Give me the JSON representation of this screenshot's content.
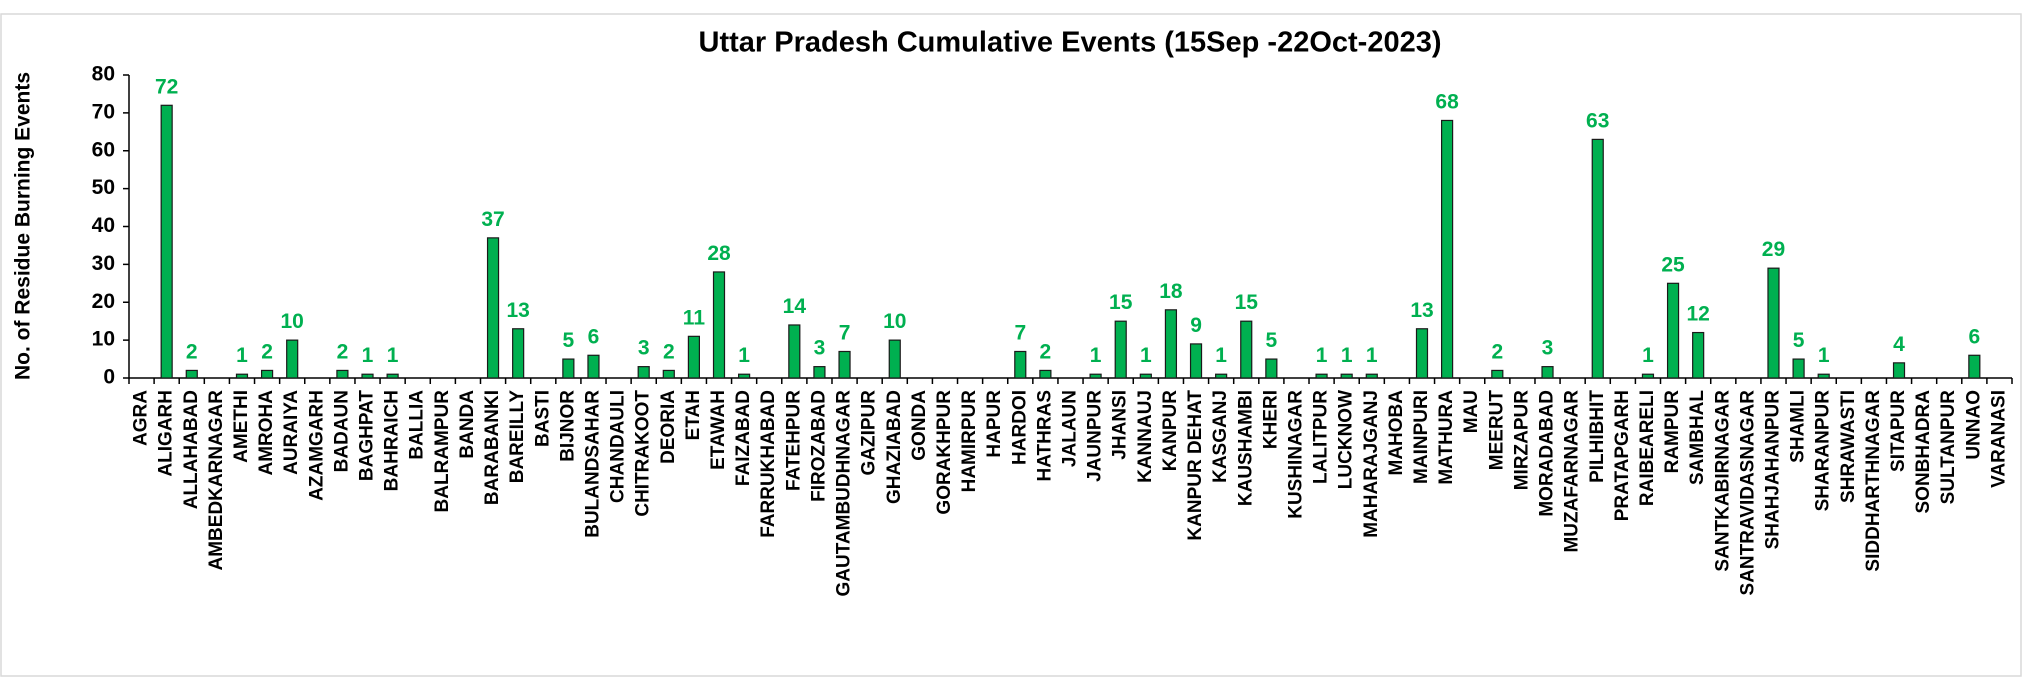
{
  "chart_data": {
    "type": "bar",
    "title": "Uttar Pradesh Cumulative Events (15Sep -22Oct-2023)",
    "y_label": "No. of Residue Burning Events",
    "color": "#00b050",
    "categories": [
      "AGRA",
      "ALIGARH",
      "ALLAHABAD",
      "AMBEDKARNAGAR",
      "AMETHI",
      "AMROHA",
      "AURAIYA",
      "AZAMGARH",
      "BADAUN",
      "BAGHPAT",
      "BAHRAICH",
      "BALLIA",
      "BALRAMPUR",
      "BANDA",
      "BARABANKI",
      "BAREILLY",
      "BASTI",
      "BIJNOR",
      "BULANDSAHAR",
      "CHANDAULI",
      "CHITRAKOOT",
      "DEORIA",
      "ETAH",
      "ETAWAH",
      "FAIZABAD",
      "FARRUKHABAD",
      "FATEHPUR",
      "FIROZABAD",
      "GAUTAMBUDHNAGAR",
      "GAZIPUR",
      "GHAZIABAD",
      "GONDA",
      "GORAKHPUR",
      "HAMIRPUR",
      "HAPUR",
      "HARDOI",
      "HATHRAS",
      "JALAUN",
      "JAUNPUR",
      "JHANSI",
      "KANNAUJ",
      "KANPUR",
      "KANPUR DEHAT",
      "KASGANJ",
      "KAUSHAMBI",
      "KHERI",
      "KUSHINAGAR",
      "LALITPUR",
      "LUCKNOW",
      "MAHARAJGANJ",
      "MAHOBA",
      "MAINPURI",
      "MATHURA",
      "MAU",
      "MEERUT",
      "MIRZAPUR",
      "MORADABAD",
      "MUZAFARNAGAR",
      "PILHIBHIT",
      "PRATAPGARH",
      "RAIBEARELI",
      "RAMPUR",
      "SAMBHAL",
      "SANTKABIRNAGAR",
      "SANTRAVIDASNAGAR",
      "SHAHJAHANPUR",
      "SHAMLI",
      "SHARANPUR",
      "SHRAWASTI",
      "SIDDHARTHNAGAR",
      "SITAPUR",
      "SONBHADRA",
      "SULTANPUR",
      "UNNAO",
      "VARANASI"
    ],
    "values": [
      0,
      72,
      2,
      0,
      1,
      2,
      10,
      0,
      2,
      1,
      1,
      0,
      0,
      0,
      37,
      13,
      0,
      5,
      6,
      0,
      3,
      2,
      11,
      28,
      1,
      0,
      14,
      3,
      7,
      0,
      10,
      0,
      0,
      0,
      0,
      7,
      2,
      0,
      1,
      15,
      1,
      18,
      9,
      1,
      15,
      5,
      0,
      1,
      1,
      1,
      0,
      13,
      68,
      0,
      2,
      0,
      3,
      0,
      63,
      0,
      1,
      25,
      12,
      0,
      0,
      29,
      5,
      1,
      0,
      0,
      4,
      0,
      0,
      6,
      0
    ],
    "ylim": [
      0,
      80
    ],
    "yticks": [
      0,
      10,
      20,
      30,
      40,
      50,
      60,
      70,
      80
    ]
  }
}
